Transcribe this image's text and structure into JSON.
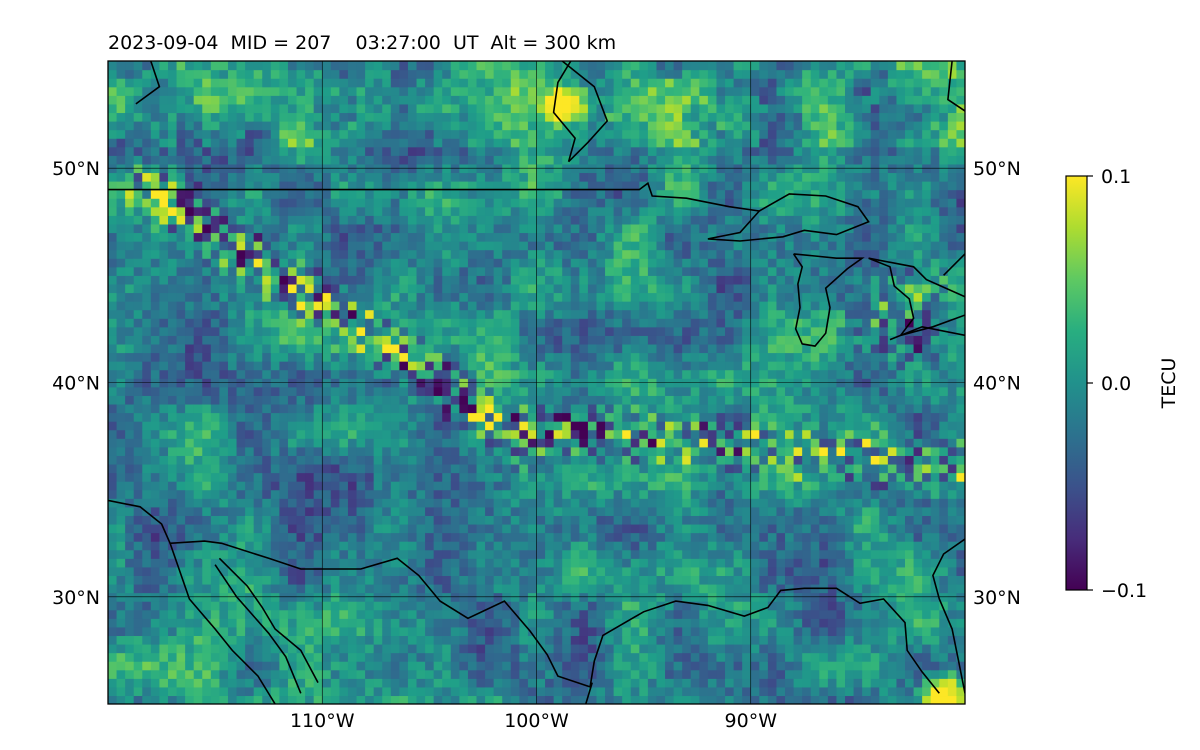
{
  "chart_data": {
    "type": "heatmap",
    "title": "2023-09-04  MID = 207    03:27:00  UT  Alt = 300 km",
    "projection": "plate-carree map",
    "lon_range": [
      -120,
      -80
    ],
    "lat_range": [
      25,
      55
    ],
    "lon_ticks": [
      -110,
      -100,
      -90
    ],
    "lon_tick_labels": [
      "110°W",
      "100°W",
      "90°W"
    ],
    "lat_ticks": [
      30,
      40,
      50
    ],
    "lat_tick_labels": [
      "30°N",
      "40°N",
      "50°N"
    ],
    "grid": true,
    "colormap": "viridis",
    "colors": {
      "viridis_low": "#440154",
      "viridis_mid": "#21918c",
      "viridis_high": "#fde725",
      "coastline": "#000000"
    },
    "colorbar": {
      "label": "TECU",
      "vmin": -0.1,
      "vmax": 0.1,
      "ticks": [
        -0.1,
        0.0,
        0.1
      ],
      "tick_labels": [
        "−0.1",
        "0.0",
        "0.1"
      ],
      "placement": "right"
    },
    "grid_resolution_deg": 0.4,
    "features": [
      {
        "description": "NW-SE band of strong +/- anomalies",
        "from": [
          -118,
          49
        ],
        "to": [
          -100,
          37
        ],
        "amplitude": 0.12
      },
      {
        "description": "zonal band of +/- anomalies",
        "from": [
          -101,
          38
        ],
        "to": [
          -80,
          36
        ],
        "amplitude": 0.1
      },
      {
        "description": "Great Lakes region +/- anomalies",
        "center": [
          -83,
          43
        ],
        "amplitude": 0.1
      },
      {
        "description": "positive patch Hudson Bay coast",
        "center": [
          -98.5,
          53
        ],
        "value": 0.1
      },
      {
        "description": "positive patch SE corner",
        "center": [
          -81,
          25.5
        ],
        "value": 0.1
      },
      {
        "description": "elevated background in the north",
        "lat_min": 51,
        "value": 0.03
      }
    ]
  }
}
